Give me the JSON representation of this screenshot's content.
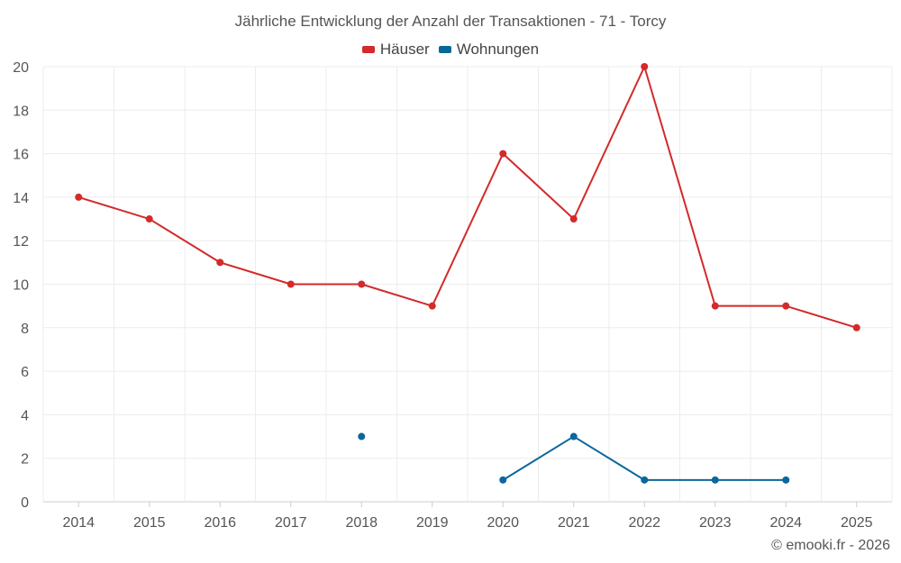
{
  "chart_data": {
    "type": "line",
    "title": "Jährliche Entwicklung der Anzahl der Transaktionen - 71 - Torcy",
    "xlabel": "",
    "ylabel": "",
    "categories": [
      "2014",
      "2015",
      "2016",
      "2017",
      "2018",
      "2019",
      "2020",
      "2021",
      "2022",
      "2023",
      "2024",
      "2025"
    ],
    "ylim": [
      0,
      20
    ],
    "yticks": [
      "0",
      "2",
      "4",
      "6",
      "8",
      "10",
      "12",
      "14",
      "16",
      "18",
      "20"
    ],
    "grid": true,
    "legend_position": "top-center",
    "series": [
      {
        "name": "Häuser",
        "color": "#d32a2a",
        "values": [
          14,
          13,
          11,
          10,
          10,
          9,
          16,
          13,
          20,
          9,
          9,
          8
        ]
      },
      {
        "name": "Wohnungen",
        "color": "#0b679c",
        "values": [
          null,
          null,
          null,
          null,
          3,
          null,
          1,
          3,
          1,
          1,
          1,
          null
        ]
      }
    ]
  },
  "footer": {
    "copyright": "© emooki.fr - 2026"
  }
}
